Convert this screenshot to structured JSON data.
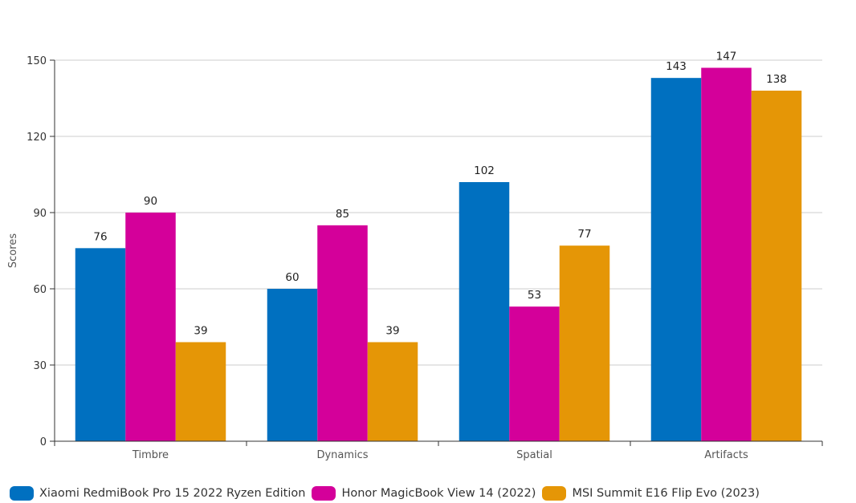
{
  "chart_data": {
    "type": "bar",
    "title": "",
    "xlabel": "",
    "ylabel": "Scores",
    "ylim": [
      0,
      150
    ],
    "yticks": [
      0,
      30,
      60,
      90,
      120,
      150
    ],
    "grid": true,
    "legend_position": "bottom",
    "categories": [
      "Timbre",
      "Dynamics",
      "Spatial",
      "Artifacts"
    ],
    "series": [
      {
        "name": "Xiaomi RedmiBook Pro 15 2022 Ryzen Edition",
        "color": "#0070c0",
        "values": [
          76,
          60,
          102,
          143
        ]
      },
      {
        "name": "Honor MagicBook View 14 (2022)",
        "color": "#d4009a",
        "values": [
          90,
          85,
          53,
          147
        ]
      },
      {
        "name": "MSI Summit E16 Flip Evo (2023)",
        "color": "#e59606",
        "values": [
          39,
          39,
          77,
          138
        ]
      }
    ]
  }
}
